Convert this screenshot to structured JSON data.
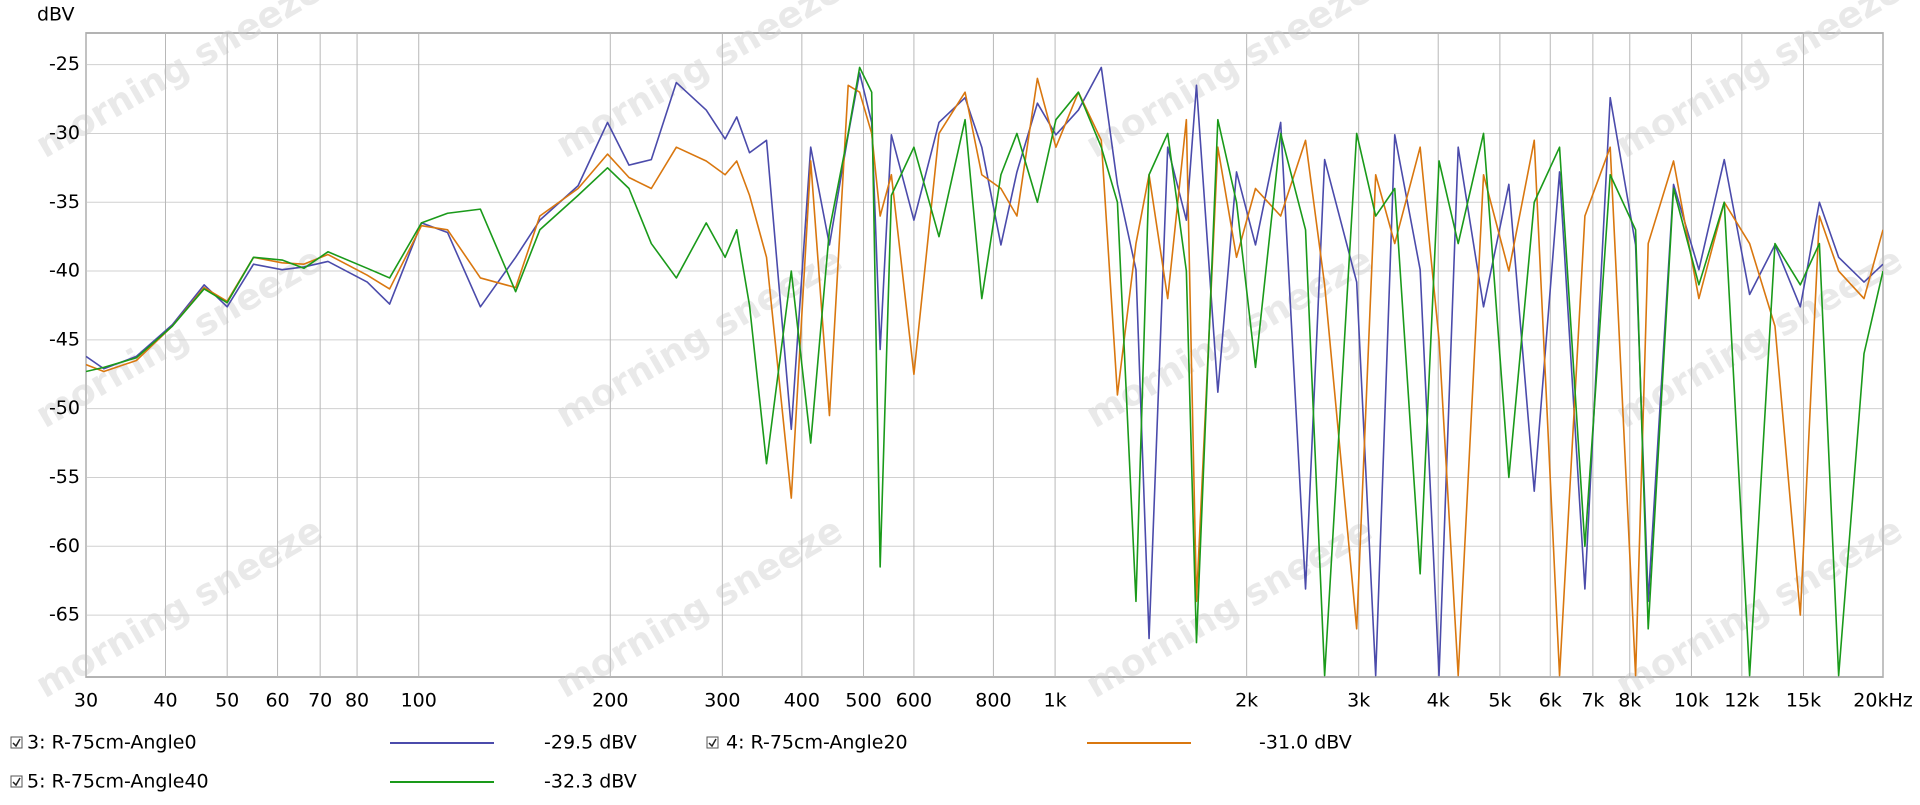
{
  "chart_data": {
    "type": "line",
    "ylabel": "dBV",
    "watermark": "morning sneeze",
    "log_x": true,
    "grid": true,
    "xlim": [
      30,
      20000
    ],
    "ylim": [
      -69.5,
      -22.7
    ],
    "yticks": [
      -25,
      -30,
      -35,
      -40,
      -45,
      -50,
      -55,
      -60,
      -65
    ],
    "xticks": [
      30,
      40,
      50,
      60,
      70,
      80,
      100,
      200,
      300,
      400,
      500,
      600,
      800,
      {
        "value": 1000,
        "label": "1k"
      },
      {
        "value": 2000,
        "label": "2k"
      },
      {
        "value": 3000,
        "label": "3k"
      },
      {
        "value": 4000,
        "label": "4k"
      },
      {
        "value": 5000,
        "label": "5k"
      },
      {
        "value": 6000,
        "label": "6k"
      },
      {
        "value": 7000,
        "label": "7k"
      },
      {
        "value": 8000,
        "label": "8k"
      },
      {
        "value": 10000,
        "label": "10k"
      },
      {
        "value": 12000,
        "label": "12k",
        "color": "#999999"
      },
      {
        "value": 15000,
        "label": "15k",
        "color": "#999999"
      },
      {
        "value": 20000,
        "label": "20kHz"
      }
    ],
    "x": [
      30,
      32,
      36,
      41,
      46,
      50,
      55,
      61,
      66,
      72,
      83,
      90,
      101,
      111,
      125,
      142,
      155,
      178,
      198,
      214,
      232,
      254,
      283,
      303,
      316,
      331,
      352,
      385,
      413,
      442,
      473,
      493,
      515,
      531,
      553,
      600,
      657,
      722,
      767,
      822,
      871,
      938,
      1003,
      1088,
      1182,
      1253,
      1340,
      1405,
      1503,
      1608,
      1668,
      1802,
      1928,
      2065,
      2262,
      2475,
      2652,
      2978,
      3190,
      3418,
      3747,
      4012,
      4300,
      4713,
      5165,
      5662,
      6205,
      6801,
      7453,
      8170,
      8552,
      9373,
      10273,
      11261,
      12343,
      13529,
      14828,
      15888,
      17035,
      18672,
      20000
    ],
    "series": [
      {
        "name": "3: R-75cm-Angle0",
        "level": "-29.5 dBV",
        "color": "#4b4bab",
        "values": [
          -46.2,
          -47.1,
          -46.2,
          -43.9,
          -41.0,
          -42.6,
          -39.5,
          -39.9,
          -39.7,
          -39.3,
          -40.8,
          -42.4,
          -36.5,
          -37.2,
          -42.6,
          -39.0,
          -36.3,
          -33.8,
          -29.2,
          -32.3,
          -31.9,
          -26.3,
          -28.3,
          -30.4,
          -28.8,
          -31.4,
          -30.5,
          -51.5,
          -31.0,
          -38.1,
          -30.1,
          -25.6,
          -29.2,
          -45.7,
          -30.1,
          -36.3,
          -29.2,
          -27.4,
          -31.0,
          -38.1,
          -32.8,
          -27.8,
          -30.1,
          -28.3,
          -25.2,
          -33.7,
          -39.9,
          -66.7,
          -31.0,
          -36.3,
          -26.5,
          -48.8,
          -32.8,
          -38.1,
          -29.2,
          -63.1,
          -31.9,
          -40.8,
          -69.4,
          -30.1,
          -39.9,
          -69.4,
          -31.0,
          -42.6,
          -33.7,
          -56.0,
          -32.8,
          -63.1,
          -27.4,
          -38.1,
          -64.0,
          -33.7,
          -39.9,
          -31.9,
          -41.7,
          -38.1,
          -42.6,
          -35.0,
          -39.0,
          -40.8,
          -39.5
        ]
      },
      {
        "name": "4: R-75cm-Angle20",
        "level": "-31.0 dBV",
        "color": "#d9770f",
        "values": [
          -46.8,
          -47.3,
          -46.5,
          -44.0,
          -41.2,
          -42.2,
          -39.0,
          -39.4,
          -39.5,
          -38.8,
          -40.3,
          -41.3,
          -36.7,
          -37.0,
          -40.5,
          -41.2,
          -36.0,
          -34.0,
          -31.5,
          -33.2,
          -34.0,
          -31.0,
          -32.0,
          -33.0,
          -32.0,
          -34.5,
          -39.0,
          -56.5,
          -32.0,
          -50.5,
          -26.5,
          -27.0,
          -30.0,
          -36.0,
          -33.0,
          -47.5,
          -30.0,
          -27.0,
          -33.0,
          -34.0,
          -36.0,
          -26.0,
          -31.0,
          -27.0,
          -30.5,
          -49.0,
          -38.0,
          -33.0,
          -42.0,
          -29.0,
          -64.0,
          -31.0,
          -39.0,
          -34.0,
          -36.0,
          -30.5,
          -41.0,
          -66.0,
          -33.0,
          -38.0,
          -31.0,
          -45.0,
          -69.4,
          -33.0,
          -40.0,
          -30.5,
          -69.4,
          -36.0,
          -31.0,
          -69.4,
          -38.0,
          -32.0,
          -42.0,
          -35.0,
          -38.0,
          -44.0,
          -65.0,
          -36.0,
          -40.0,
          -42.0,
          -37.0
        ]
      },
      {
        "name": "5: R-75cm-Angle40",
        "level": "-32.3 dBV",
        "color": "#1a9a1a",
        "values": [
          -47.3,
          -47.0,
          -46.3,
          -44.0,
          -41.3,
          -42.3,
          -39.0,
          -39.2,
          -39.8,
          -38.6,
          -39.8,
          -40.5,
          -36.5,
          -35.8,
          -35.5,
          -41.5,
          -37.0,
          -34.5,
          -32.5,
          -34.0,
          -38.0,
          -40.5,
          -36.5,
          -39.0,
          -37.0,
          -42.5,
          -54.0,
          -40.0,
          -52.5,
          -37.0,
          -30.0,
          -25.2,
          -27.0,
          -61.5,
          -34.5,
          -31.0,
          -37.5,
          -29.0,
          -42.0,
          -33.0,
          -30.0,
          -35.0,
          -29.0,
          -27.0,
          -31.0,
          -35.0,
          -64.0,
          -33.0,
          -30.0,
          -40.0,
          -67.0,
          -29.0,
          -35.0,
          -47.0,
          -30.0,
          -37.0,
          -69.4,
          -30.0,
          -36.0,
          -34.0,
          -62.0,
          -32.0,
          -38.0,
          -30.0,
          -55.0,
          -35.0,
          -31.0,
          -60.0,
          -33.0,
          -37.0,
          -66.0,
          -34.0,
          -41.0,
          -35.0,
          -69.4,
          -38.0,
          -41.0,
          -38.0,
          -69.4,
          -46.0,
          -40.0
        ]
      }
    ]
  }
}
